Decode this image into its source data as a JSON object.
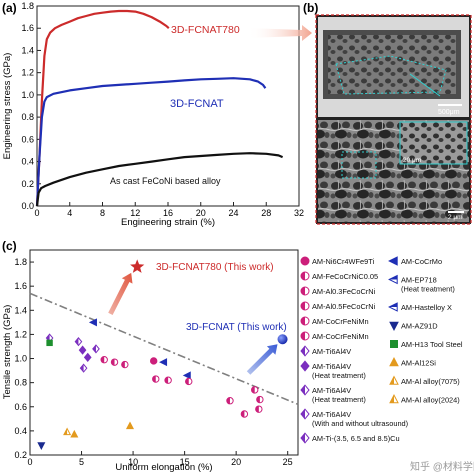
{
  "panel_labels": {
    "a": "(a)",
    "b": "(b)",
    "c": "(c)"
  },
  "micro": {
    "scale_top": "500μm",
    "scale_bottom": "2 μm",
    "scale_inset": "20 μm"
  },
  "watermark": "知乎 @材料学网",
  "chart_data": [
    {
      "type": "line",
      "xlabel": "Engineering strain (%)",
      "ylabel": "Engineering stress (GPa)",
      "xlim": [
        0,
        32
      ],
      "ylim": [
        0,
        1.8
      ],
      "xticks": [
        0,
        4,
        8,
        12,
        16,
        20,
        24,
        28,
        32
      ],
      "yticks": [
        0.0,
        0.2,
        0.4,
        0.6,
        0.8,
        1.0,
        1.2,
        1.4,
        1.6,
        1.8
      ],
      "grid": false,
      "series": [
        {
          "name": "3D-FCNAT780",
          "color": "#cc2b2b",
          "x": [
            0,
            0.3,
            0.6,
            0.9,
            1.2,
            1.6,
            2.2,
            3,
            4,
            5,
            6,
            7,
            8,
            9,
            10,
            11,
            12,
            13,
            14,
            15,
            15.8,
            16.1
          ],
          "y": [
            0,
            0.45,
            0.95,
            1.35,
            1.5,
            1.56,
            1.6,
            1.63,
            1.66,
            1.69,
            1.71,
            1.73,
            1.74,
            1.75,
            1.755,
            1.755,
            1.75,
            1.73,
            1.7,
            1.66,
            1.62,
            1.6
          ]
        },
        {
          "name": "3D-FCNAT",
          "color": "#1f2fb5",
          "x": [
            0,
            0.3,
            0.6,
            0.9,
            1.2,
            2,
            4,
            6,
            8,
            10,
            12,
            14,
            16,
            18,
            20,
            22,
            24,
            26,
            27,
            27.6,
            27.9
          ],
          "y": [
            0,
            0.45,
            0.8,
            0.94,
            0.98,
            1.01,
            1.04,
            1.06,
            1.08,
            1.09,
            1.1,
            1.11,
            1.12,
            1.13,
            1.14,
            1.145,
            1.15,
            1.14,
            1.12,
            1.09,
            1.06
          ]
        },
        {
          "name": "As cast FeCoNi based alloy",
          "color": "#111111",
          "x": [
            0,
            0.2,
            0.5,
            1,
            2,
            4,
            6,
            8,
            10,
            12,
            14,
            16,
            18,
            20,
            22,
            24,
            26,
            28,
            29.5,
            30
          ],
          "y": [
            0,
            0.12,
            0.16,
            0.18,
            0.21,
            0.26,
            0.3,
            0.33,
            0.36,
            0.38,
            0.4,
            0.42,
            0.44,
            0.45,
            0.46,
            0.47,
            0.475,
            0.47,
            0.455,
            0.44
          ]
        }
      ],
      "annotations": [
        "3D-FCNAT780",
        "3D-FCNAT",
        "As cast FeCoNi based alloy"
      ]
    },
    {
      "type": "scatter",
      "xlabel": "Uniform elongation (%)",
      "ylabel": "Tensile strength (GPa)",
      "xlim": [
        0,
        26
      ],
      "ylim": [
        0.2,
        1.9
      ],
      "xticks": [
        0,
        5,
        10,
        15,
        20,
        25
      ],
      "yticks": [
        0.2,
        0.4,
        0.6,
        0.8,
        1.0,
        1.2,
        1.4,
        1.6,
        1.8
      ],
      "grid": false,
      "highlights": [
        {
          "label": "3D-FCNAT780 (This work)",
          "x": 10.4,
          "y": 1.76,
          "color": "#cc2b2b",
          "marker": "star"
        },
        {
          "label": "3D-FCNAT (This work)",
          "x": 24.5,
          "y": 1.16,
          "color": "#1f2fb5",
          "marker": "sphere"
        }
      ],
      "trendline": {
        "x": [
          0,
          26
        ],
        "y": [
          1.54,
          0.62
        ],
        "style": "dash-dot",
        "color": "#808080"
      },
      "points": [
        {
          "x": 1.9,
          "y": 1.17,
          "color": "#7b2fbf",
          "marker": "diamond-half"
        },
        {
          "x": 1.9,
          "y": 1.13,
          "color": "#1d8f2e",
          "marker": "square"
        },
        {
          "x": 6.2,
          "y": 1.3,
          "color": "#1f2fb5",
          "marker": "tri-left"
        },
        {
          "x": 4.7,
          "y": 1.14,
          "color": "#7b2fbf",
          "marker": "diamond-half"
        },
        {
          "x": 5.1,
          "y": 1.07,
          "color": "#7b2fbf",
          "marker": "diamond"
        },
        {
          "x": 5.6,
          "y": 1.01,
          "color": "#7b2fbf",
          "marker": "diamond"
        },
        {
          "x": 6.4,
          "y": 1.08,
          "color": "#7b2fbf",
          "marker": "diamond-half"
        },
        {
          "x": 5.2,
          "y": 0.92,
          "color": "#7b2fbf",
          "marker": "diamond-half"
        },
        {
          "x": 7.2,
          "y": 0.99,
          "color": "#cc1f7a",
          "marker": "circle-half"
        },
        {
          "x": 8.2,
          "y": 0.97,
          "color": "#cc1f7a",
          "marker": "circle-half"
        },
        {
          "x": 9.2,
          "y": 0.95,
          "color": "#cc1f7a",
          "marker": "circle-half"
        },
        {
          "x": 12.0,
          "y": 0.98,
          "color": "#cc1f7a",
          "marker": "circle"
        },
        {
          "x": 13.0,
          "y": 0.97,
          "color": "#1f2fb5",
          "marker": "tri-left"
        },
        {
          "x": 12.2,
          "y": 0.83,
          "color": "#cc1f7a",
          "marker": "circle-half"
        },
        {
          "x": 13.4,
          "y": 0.82,
          "color": "#cc1f7a",
          "marker": "circle-half"
        },
        {
          "x": 15.3,
          "y": 0.86,
          "color": "#1f2fb5",
          "marker": "tri-left"
        },
        {
          "x": 15.4,
          "y": 0.81,
          "color": "#cc1f7a",
          "marker": "circle-half"
        },
        {
          "x": 19.4,
          "y": 0.65,
          "color": "#cc1f7a",
          "marker": "circle-half"
        },
        {
          "x": 21.8,
          "y": 0.74,
          "color": "#cc1f7a",
          "marker": "circle-half"
        },
        {
          "x": 22.3,
          "y": 0.66,
          "color": "#cc1f7a",
          "marker": "circle-half"
        },
        {
          "x": 22.2,
          "y": 0.58,
          "color": "#cc1f7a",
          "marker": "circle-half"
        },
        {
          "x": 20.8,
          "y": 0.54,
          "color": "#cc1f7a",
          "marker": "circle-half"
        },
        {
          "x": 3.6,
          "y": 0.39,
          "color": "#e39a1e",
          "marker": "triangle-half"
        },
        {
          "x": 4.3,
          "y": 0.37,
          "color": "#e39a1e",
          "marker": "triangle"
        },
        {
          "x": 9.7,
          "y": 0.44,
          "color": "#e39a1e",
          "marker": "triangle"
        },
        {
          "x": 1.1,
          "y": 0.28,
          "color": "#1a2a8f",
          "marker": "tri-down"
        }
      ],
      "legend": {
        "placement": "right",
        "left_column": [
          {
            "label": "AM-Ni6Cr4WFe9Ti",
            "color": "#cc1f7a",
            "marker": "circle"
          },
          {
            "label": "AM-FeCoCrNiC0.05",
            "color": "#cc1f7a",
            "marker": "circle-half"
          },
          {
            "label": "AM-Al0.3FeCoCrNi",
            "color": "#cc1f7a",
            "marker": "circle-half"
          },
          {
            "label": "AM-Al0.5FeCoCrNi",
            "color": "#cc1f7a",
            "marker": "circle-half"
          },
          {
            "label": "AM-CoCrFeNiMn",
            "color": "#cc1f7a",
            "marker": "circle-half"
          },
          {
            "label": "AM-CoCrFeNiMn",
            "color": "#cc1f7a",
            "marker": "circle-half"
          },
          {
            "label": "AM-Ti6Al4V",
            "color": "#7b2fbf",
            "marker": "diamond-half"
          },
          {
            "label": "AM-Ti6Al4V",
            "sub": "(Heat treatment)",
            "color": "#7b2fbf",
            "marker": "diamond"
          },
          {
            "label": "AM-Ti6Al4V",
            "sub": "(Heat treatment)",
            "color": "#7b2fbf",
            "marker": "diamond-half"
          },
          {
            "label": "AM-Ti6Al4V",
            "sub": "(With and without ultrasound)",
            "color": "#7b2fbf",
            "marker": "diamond-half"
          },
          {
            "label": "AM-Ti-(3.5, 6.5 and 8.5)Cu",
            "color": "#7b2fbf",
            "marker": "diamond-half"
          }
        ],
        "right_column": [
          {
            "label": "AM-CoCrMo",
            "color": "#1f2fb5",
            "marker": "tri-left"
          },
          {
            "label": "AM-EP718",
            "sub": "(Heat treatment)",
            "color": "#1f2fb5",
            "marker": "tri-left-half"
          },
          {
            "label": "AM-Hastelloy X",
            "color": "#1f2fb5",
            "marker": "tri-left-half"
          },
          {
            "label": "AM-AZ91D",
            "color": "#1a2a8f",
            "marker": "tri-down"
          },
          {
            "label": "AM-H13 Tool Steel",
            "color": "#1d8f2e",
            "marker": "square"
          },
          {
            "label": "AM-Al12Si",
            "color": "#e39a1e",
            "marker": "triangle"
          },
          {
            "label": "AM-Al alloy(7075)",
            "color": "#e39a1e",
            "marker": "triangle-half"
          },
          {
            "label": "AM-Al alloy(2024)",
            "color": "#e39a1e",
            "marker": "triangle-half"
          }
        ]
      }
    }
  ]
}
